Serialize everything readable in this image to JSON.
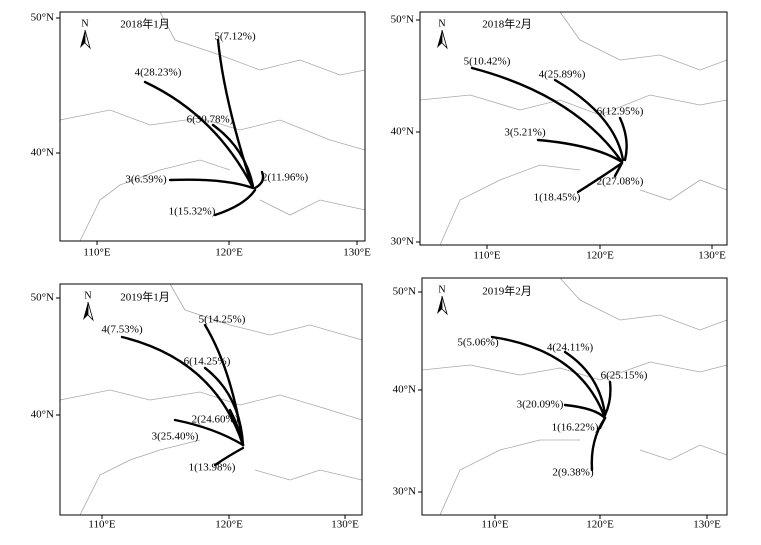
{
  "panels": [
    {
      "title": "2018年1月",
      "lat_labels": [
        "50°N",
        "40°N"
      ],
      "lon_labels": [
        "110°E",
        "120°E",
        "130°E"
      ],
      "clusters": [
        "5(7.12%)",
        "4(28.23%)",
        "6(30.78%)",
        "2(11.96%)",
        "3(6.59%)",
        "1(15.32%)"
      ]
    },
    {
      "title": "2018年2月",
      "lat_labels": [
        "50°N",
        "40°N",
        "30°N"
      ],
      "lon_labels": [
        "110°E",
        "120°E",
        "130°E"
      ],
      "clusters": [
        "5(10.42%)",
        "4(25.89%)",
        "6(12.95%)",
        "3(5.21%)",
        "2(27.08%)",
        "1(18.45%)"
      ]
    },
    {
      "title": "2019年1月",
      "lat_labels": [
        "50°N",
        "40°N"
      ],
      "lon_labels": [
        "110°E",
        "120°E",
        "130°E"
      ],
      "clusters": [
        "5(14.25%)",
        "4(7.53%)",
        "6(14.25%)",
        "2(24.60%)",
        "3(25.40%)",
        "1(13.98%)"
      ]
    },
    {
      "title": "2019年2月",
      "lat_labels": [
        "50°N",
        "40°N",
        "30°N"
      ],
      "lon_labels": [
        "110°E",
        "120°E",
        "130°E"
      ],
      "clusters": [
        "5(5.06%)",
        "4(24.11%)",
        "6(25.15%)",
        "3(20.09%)",
        "1(16.22%)",
        "2(9.38%)"
      ]
    }
  ],
  "north_label": "N"
}
